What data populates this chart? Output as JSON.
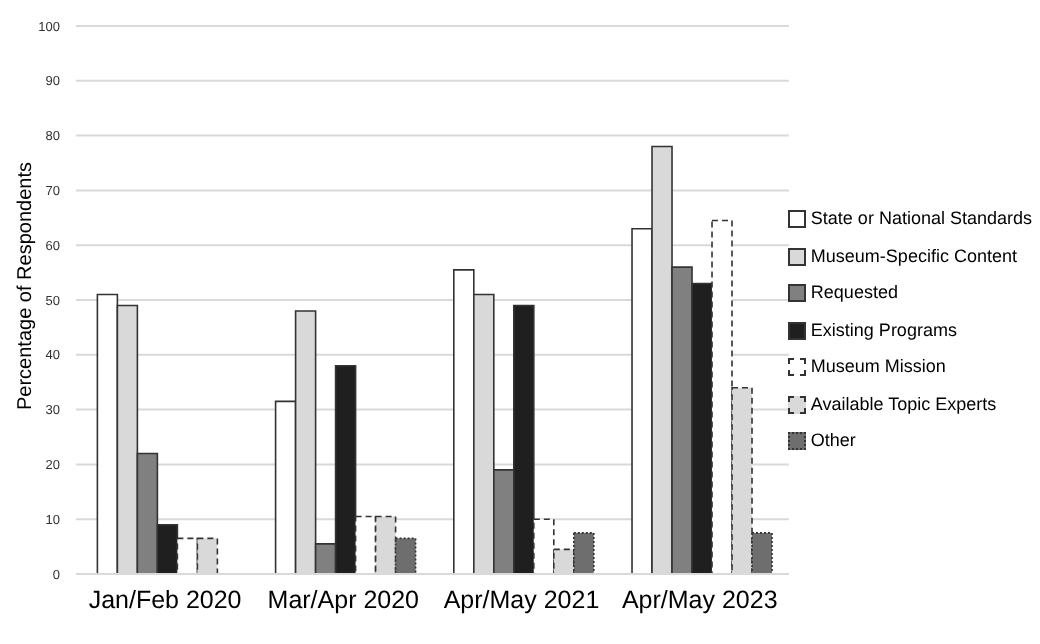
{
  "chart_data": {
    "type": "bar",
    "ylabel": "Percentage of Respondents",
    "categories": [
      "Jan/Feb 2020",
      "Mar/Apr 2020",
      "Apr/May 2021",
      "Apr/May 2023"
    ],
    "series": [
      {
        "name": "State or National Standards",
        "color": "#ffffff",
        "values": [
          51,
          31.5,
          55.5,
          63
        ]
      },
      {
        "name": "Museum-Specific Content",
        "color": "#d9d9d9",
        "values": [
          49,
          48,
          51,
          78
        ]
      },
      {
        "name": "Requested",
        "color": "#808080",
        "values": [
          22,
          5.5,
          19,
          56
        ]
      },
      {
        "name": "Existing Programs",
        "color": "#1f1f1f",
        "values": [
          9,
          38,
          49,
          53
        ]
      },
      {
        "name": "Museum Mission",
        "color": "#ffffff",
        "line_style": "dashed",
        "values": [
          6.5,
          10.5,
          10,
          64.5
        ]
      },
      {
        "name": "Available Topic Experts",
        "color": "#d9d9d9",
        "line_style": "dashed",
        "values": [
          6.5,
          10.5,
          4.5,
          34
        ]
      },
      {
        "name": "Other",
        "color": "#6e6e6e",
        "line_style": "dotted",
        "values": [
          null,
          6.5,
          7.5,
          7.5
        ]
      }
    ],
    "ylim": [
      0,
      100
    ],
    "yticks": [
      0,
      10,
      20,
      30,
      40,
      50,
      60,
      70,
      80,
      90,
      100
    ],
    "grid": "y",
    "legend": "right"
  }
}
